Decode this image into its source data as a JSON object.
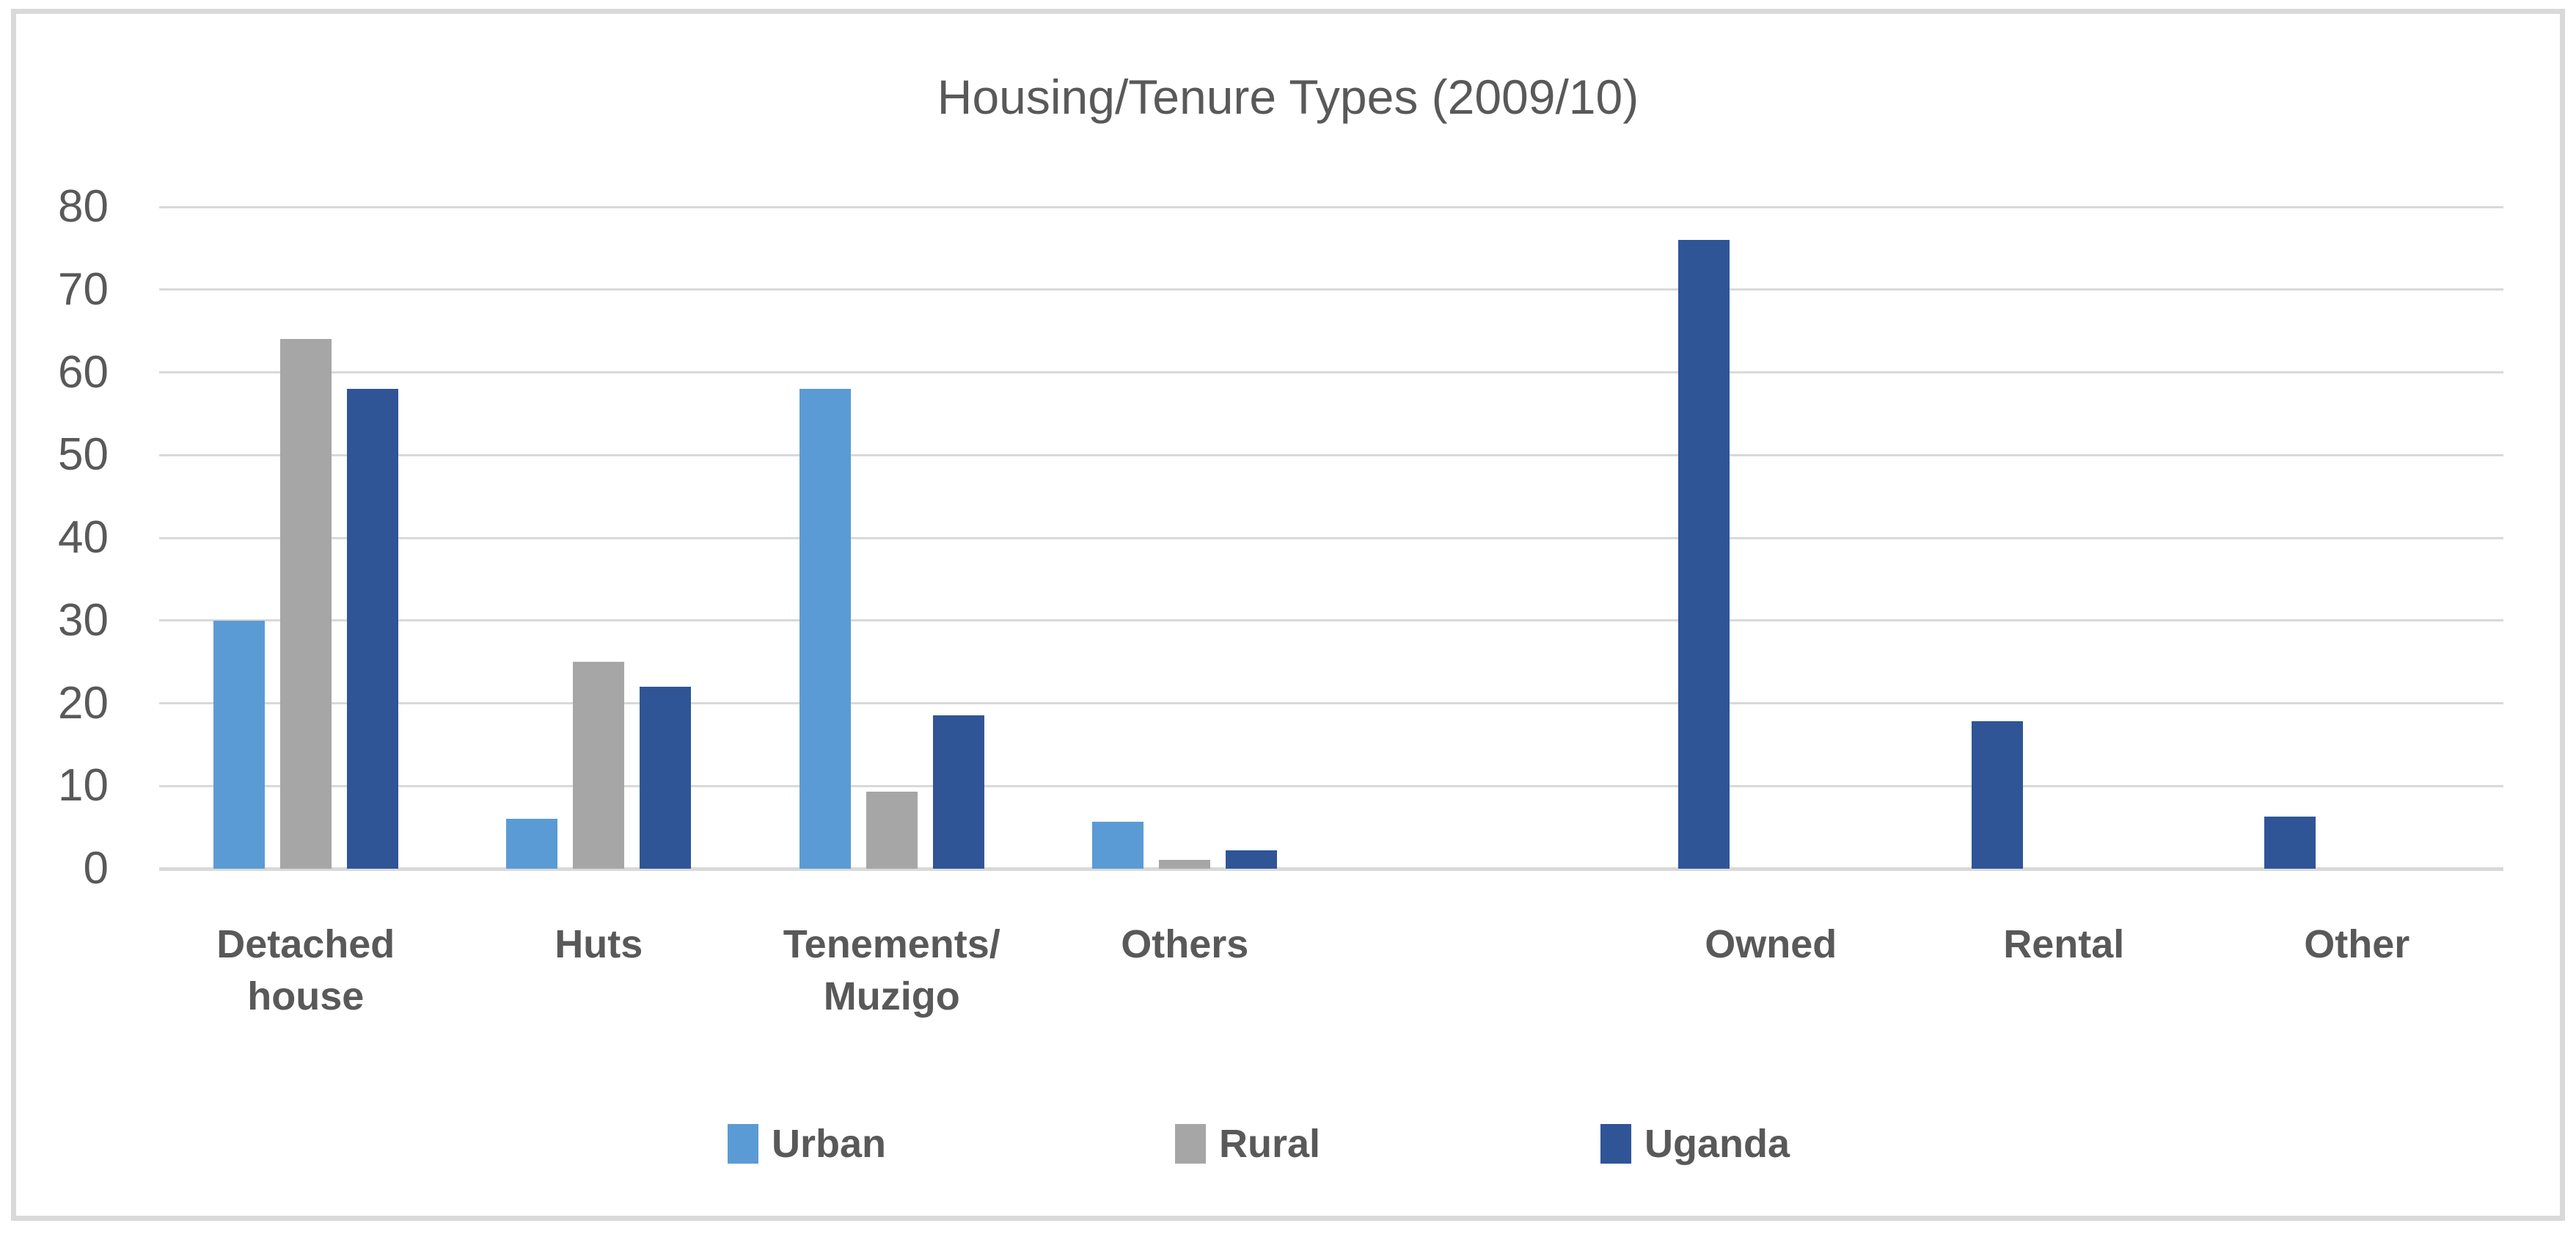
{
  "title": "Housing/Tenure Types (2009/10)",
  "colors": {
    "urban": "#5B9BD5",
    "rural": "#A6A6A6",
    "uganda": "#2F5597",
    "gridline": "#D9D9D9",
    "axis_line": "#D9D9D9",
    "frame_border": "#D9D9D9",
    "text": "#595959"
  },
  "legend": [
    {
      "label": "Urban",
      "color": "#5B9BD5"
    },
    {
      "label": "Rural",
      "color": "#A6A6A6"
    },
    {
      "label": "Uganda",
      "color": "#2F5597"
    }
  ],
  "chart_data": {
    "type": "bar",
    "title": "Housing/Tenure Types (2009/10)",
    "categories": [
      "Detached house",
      "Huts",
      "Tenements/ Muzigo",
      "Others",
      "",
      "Owned",
      "Rental",
      "Other"
    ],
    "category_label_lines": [
      [
        "Detached",
        "house"
      ],
      [
        "Huts"
      ],
      [
        "Tenements/",
        "Muzigo"
      ],
      [
        "Others"
      ],
      [],
      [
        "Owned"
      ],
      [
        "Rental"
      ],
      [
        "Other"
      ]
    ],
    "series": [
      {
        "name": "Urban",
        "color": "#5B9BD5",
        "values": [
          30,
          6,
          58,
          5.7,
          null,
          null,
          null,
          null
        ]
      },
      {
        "name": "Rural",
        "color": "#A6A6A6",
        "values": [
          64,
          25,
          9.3,
          1.1,
          null,
          null,
          null,
          null
        ]
      },
      {
        "name": "Uganda",
        "color": "#2F5597",
        "values": [
          58,
          22,
          18.5,
          2.2,
          null,
          76,
          17.8,
          6.3
        ]
      }
    ],
    "xlabel": "",
    "ylabel": "",
    "ylim": [
      0,
      80
    ],
    "yticks": [
      0,
      10,
      20,
      30,
      40,
      50,
      60,
      70,
      80
    ],
    "grid": true,
    "legend_position": "bottom"
  }
}
